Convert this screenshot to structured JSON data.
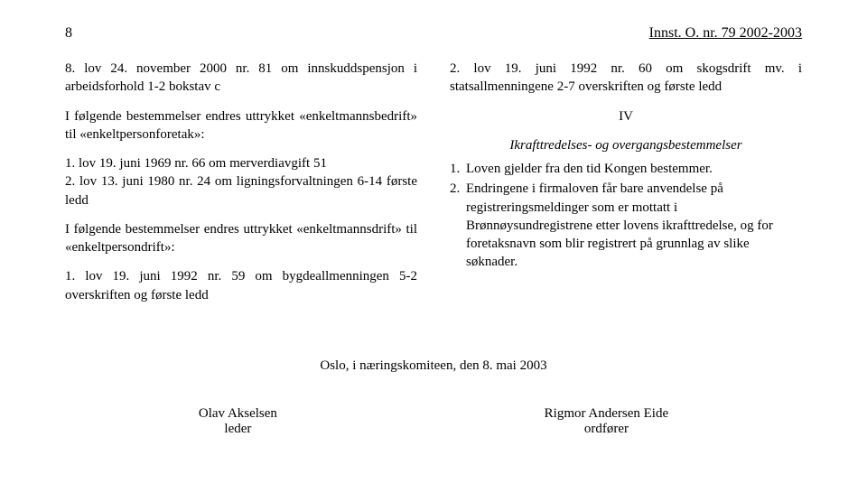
{
  "header": {
    "page_number": "8",
    "doc_title": "Innst. O. nr. 79 2002-2003"
  },
  "left_column": {
    "p1": "8. lov 24. november 2000 nr. 81 om innskuddspensjon i arbeidsforhold 1-2 bokstav c",
    "p2": "I følgende bestemmelser endres uttrykket «enkeltmannsbedrift» til «enkeltpersonforetak»:",
    "list1": {
      "i1": "1. lov 19. juni 1969 nr. 66 om merverdiavgift 51",
      "i2": "2. lov 13. juni 1980 nr. 24 om ligningsforvaltningen 6-14 første ledd"
    },
    "p3": "I følgende bestemmelser endres uttrykket «enkeltmannsdrift» til «enkeltpersondrift»:",
    "list2": {
      "i1": "1. lov 19. juni 1992 nr. 59 om bygdeallmenningen 5-2 overskriften og første ledd"
    }
  },
  "right_column": {
    "list3": {
      "i2": "2. lov 19. juni 1992 nr. 60 om skogsdrift mv. i statsallmenningene 2-7 overskriften og første ledd"
    },
    "section_label": "IV",
    "section_title": "Ikrafttredelses- og overgangsbestemmelser",
    "list4": {
      "i1_n": "1.",
      "i1_t": "Loven gjelder fra den tid Kongen bestemmer.",
      "i2_n": "2.",
      "i2_t": "Endringene i firmaloven får bare anvendelse på registreringsmeldinger som er mottatt i Brønnøysundregistrene etter lovens ikrafttredelse, og for foretaksnavn som blir registrert på grunnlag av slike søknader."
    }
  },
  "footer": {
    "committee_line": "Oslo, i næringskomiteen, den 8. mai 2003",
    "sig_left_name": "Olav Akselsen",
    "sig_left_role": "leder",
    "sig_right_name": "Rigmor Andersen Eide",
    "sig_right_role": "ordfører"
  }
}
